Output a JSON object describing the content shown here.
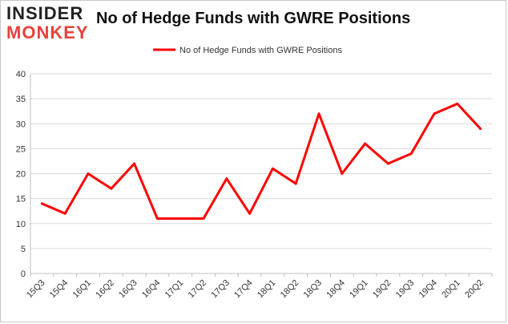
{
  "logo": {
    "line1": "INSIDER",
    "line2": "MONKEY"
  },
  "chart_data": {
    "type": "line",
    "title": "No of Hedge Funds with GWRE Positions",
    "categories": [
      "15Q3",
      "15Q4",
      "16Q1",
      "16Q2",
      "16Q3",
      "16Q4",
      "17Q1",
      "17Q2",
      "17Q3",
      "17Q4",
      "18Q1",
      "18Q2",
      "18Q3",
      "18Q4",
      "19Q1",
      "19Q2",
      "19Q3",
      "19Q4",
      "20Q1",
      "20Q2"
    ],
    "series": [
      {
        "name": "No of Hedge Funds with GWRE Positions",
        "values": [
          14,
          12,
          20,
          17,
          22,
          11,
          11,
          11,
          19,
          12,
          21,
          18,
          32,
          20,
          26,
          22,
          24,
          32,
          34,
          29
        ],
        "color": "#ff0000"
      }
    ],
    "xlabel": "",
    "ylabel": "",
    "ylim": [
      0,
      40
    ],
    "yticks": [
      0,
      5,
      10,
      15,
      20,
      25,
      30,
      35,
      40
    ],
    "grid": true,
    "legend_position": "top-center"
  }
}
